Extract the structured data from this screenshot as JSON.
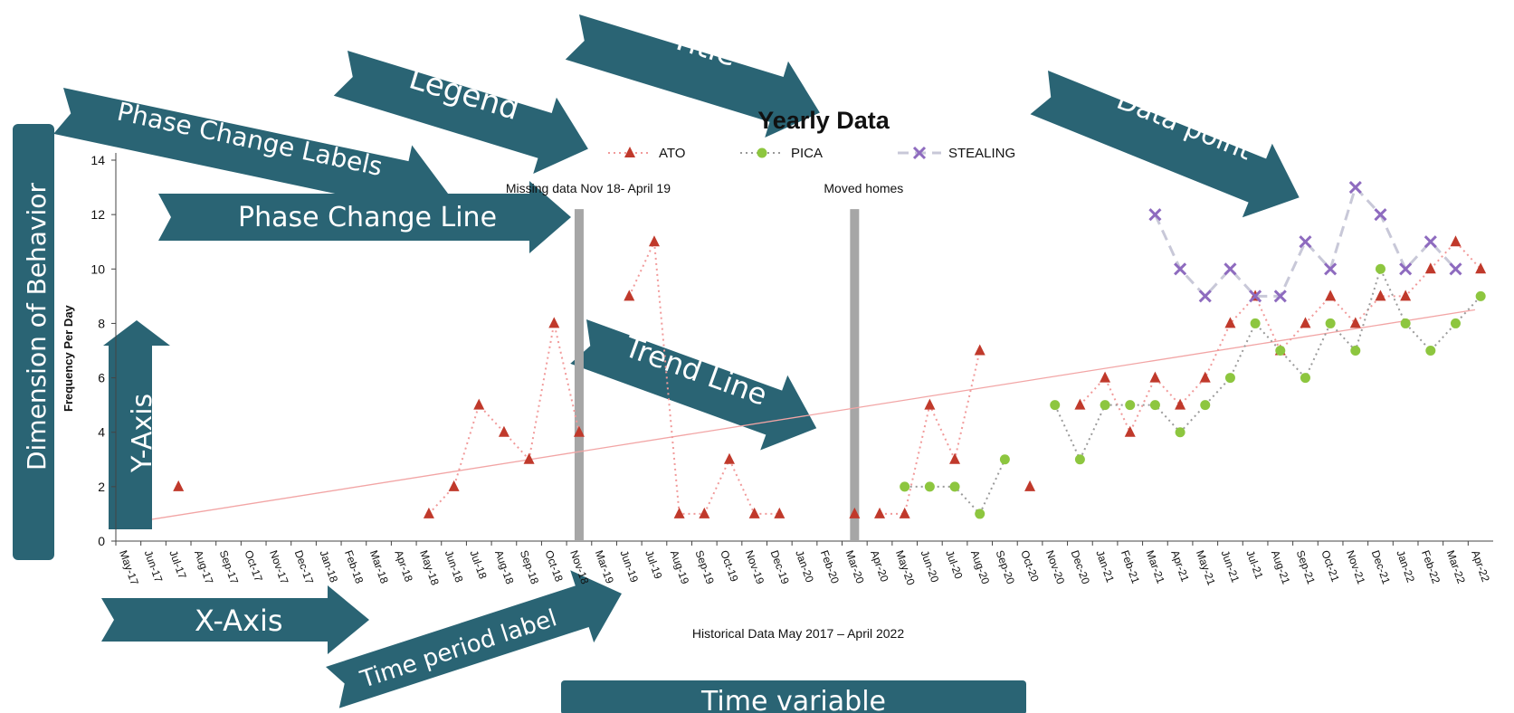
{
  "annotations": {
    "title": "Title",
    "legend": "Legend",
    "phase_change_labels": "Phase Change Labels",
    "phase_change_line": "Phase Change Line",
    "data_point": "Data point",
    "dimension_of_behavior": "Dimension of Behavior",
    "y_axis": "Y-Axis",
    "trend_line": "Trend Line",
    "x_axis": "X-Axis",
    "time_period_label": "Time period label",
    "time_variable": "Time variable"
  },
  "colors": {
    "arrow": "#2a6474",
    "ato": "#c0392b",
    "pica": "#8dc63f",
    "stealing": "#8e6bbf",
    "stealing_line": "#c8c8d8",
    "trend": "#f2a5a5",
    "phase_line": "#a6a6a6"
  },
  "chart_data": {
    "type": "line",
    "title": "Yearly Data",
    "ylabel": "Frequency Per Day",
    "xlabel": "Historical Data May 2017 – April 2022",
    "ylim": [
      0,
      14
    ],
    "yticks": [
      0,
      2,
      4,
      6,
      8,
      10,
      12,
      14
    ],
    "categories": [
      "May-17",
      "Jun-17",
      "Jul-17",
      "Aug-17",
      "Sep-17",
      "Oct-17",
      "Nov-17",
      "Dec-17",
      "Jan-18",
      "Feb-18",
      "Mar-18",
      "Apr-18",
      "May-18",
      "Jun-18",
      "Jul-18",
      "Aug-18",
      "Sep-18",
      "Oct-18",
      "Nov-18",
      "Mar-19",
      "Jun-19",
      "Jul-19",
      "Aug-19",
      "Sep-19",
      "Oct-19",
      "Nov-19",
      "Dec-19",
      "Jan-20",
      "Feb-20",
      "Mar-20",
      "Apr-20",
      "May-20",
      "Jun-20",
      "Jul-20",
      "Aug-20",
      "Sep-20",
      "Oct-20",
      "Nov-20",
      "Dec-20",
      "Jan-21",
      "Feb-21",
      "Mar-21",
      "Apr-21",
      "May-21",
      "Jun-21",
      "Jul-21",
      "Aug-21",
      "Sep-21",
      "Oct-21",
      "Nov-21",
      "Dec-21",
      "Jan-22",
      "Feb-22",
      "Mar-22",
      "Apr-22"
    ],
    "tick_labels": [
      "May-17",
      "Jun-17",
      "Jul-17",
      "Aug-17",
      "Sep-17",
      "Oct-17",
      "Nov-17",
      "Dec-17",
      "Jan-18",
      "Feb-18",
      "Mar-18",
      "Apr-18",
      "May-18",
      "Jun-18",
      "Jul-18",
      "Aug-18",
      "Sep-18",
      "Oct-18",
      "Nov-18",
      "Mar-19",
      "Jun-19",
      "Jul-19",
      "Aug-19",
      "Sep-19",
      "Oct-19",
      "Nov-19",
      "Dec-19",
      "Jan-20",
      "Feb-20",
      "Mar-20",
      "Apr-20",
      "May-20",
      "Jun-20",
      "Jul-20",
      "Aug-20",
      "Sep-20",
      "Oct-20",
      "Nov-20",
      "Dec-20",
      "Jan-21",
      "Feb-21",
      "Mar-21",
      "Apr-21",
      "May-21",
      "Jun-21",
      "Jul-21",
      "Aug-21",
      "Sep-21",
      "Oct-21",
      "Nov-21",
      "Dec-21",
      "Jan-22",
      "Feb-22",
      "Mar-22",
      "Apr-22"
    ],
    "series": [
      {
        "name": "ATO",
        "marker": "triangle",
        "line": "dotted",
        "values": [
          null,
          null,
          2,
          null,
          null,
          null,
          null,
          null,
          null,
          null,
          null,
          null,
          1,
          2,
          5,
          4,
          3,
          8,
          4,
          null,
          9,
          11,
          1,
          1,
          3,
          1,
          1,
          null,
          null,
          1,
          1,
          1,
          5,
          3,
          7,
          null,
          2,
          null,
          5,
          6,
          4,
          6,
          5,
          6,
          8,
          9,
          7,
          8,
          9,
          8,
          9,
          9,
          10,
          11,
          10
        ]
      },
      {
        "name": "PICA",
        "marker": "circle",
        "line": "dotted",
        "values": [
          null,
          null,
          null,
          null,
          null,
          null,
          null,
          null,
          null,
          null,
          null,
          null,
          null,
          null,
          null,
          null,
          null,
          null,
          null,
          null,
          null,
          null,
          null,
          null,
          null,
          null,
          null,
          null,
          null,
          null,
          null,
          2,
          2,
          2,
          1,
          3,
          null,
          5,
          3,
          5,
          5,
          5,
          4,
          5,
          6,
          8,
          7,
          6,
          8,
          7,
          10,
          8,
          7,
          8,
          9
        ]
      },
      {
        "name": "STEALING",
        "marker": "x",
        "line": "dashed",
        "values": [
          null,
          null,
          null,
          null,
          null,
          null,
          null,
          null,
          null,
          null,
          null,
          null,
          null,
          null,
          null,
          null,
          null,
          null,
          null,
          null,
          null,
          null,
          null,
          null,
          null,
          null,
          null,
          null,
          null,
          null,
          null,
          null,
          null,
          null,
          null,
          null,
          null,
          null,
          null,
          null,
          null,
          12,
          10,
          9,
          10,
          9,
          9,
          11,
          10,
          13,
          12,
          10,
          11,
          10,
          null
        ]
      }
    ],
    "trend": {
      "from": [
        0,
        0.8
      ],
      "to": [
        55,
        8.5
      ]
    },
    "phase_changes": [
      {
        "after": "Nov-18",
        "label": "Missing data Nov 18- April 19"
      },
      {
        "after": "Mar-20",
        "label": "Moved homes"
      }
    ],
    "legend_position": "top"
  }
}
